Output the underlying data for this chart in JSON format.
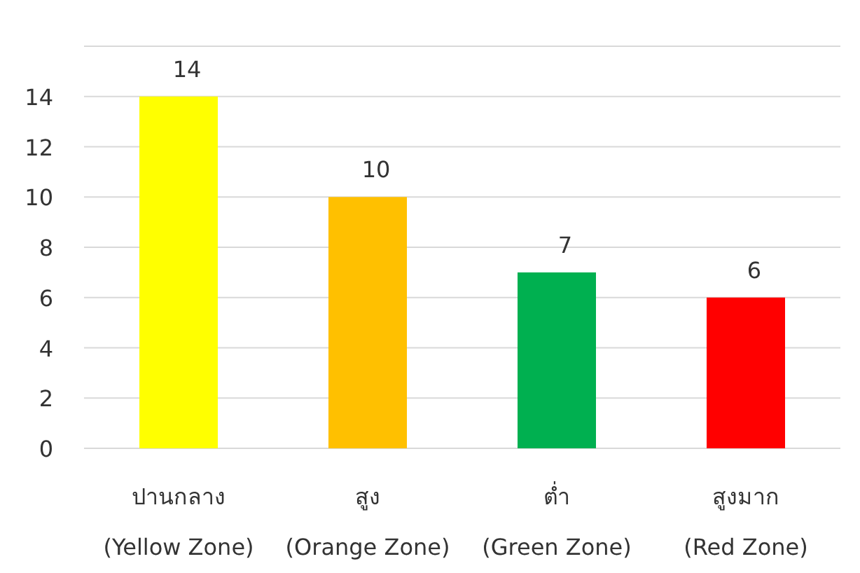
{
  "chart_data": {
    "type": "bar",
    "categories": [
      "ปานกลาง (Yellow Zone)",
      "สูง (Orange Zone)",
      "ต่ำ (Green Zone)",
      "สูงมาก (Red Zone)"
    ],
    "values": [
      14,
      10,
      7,
      6
    ],
    "colors": [
      "#ffff00",
      "#ffc000",
      "#00b050",
      "#ff0000"
    ],
    "ylim": [
      0,
      16
    ],
    "yticks": [
      0,
      2,
      4,
      6,
      8,
      10,
      12,
      14
    ],
    "grid": "y",
    "data_labels": true
  }
}
